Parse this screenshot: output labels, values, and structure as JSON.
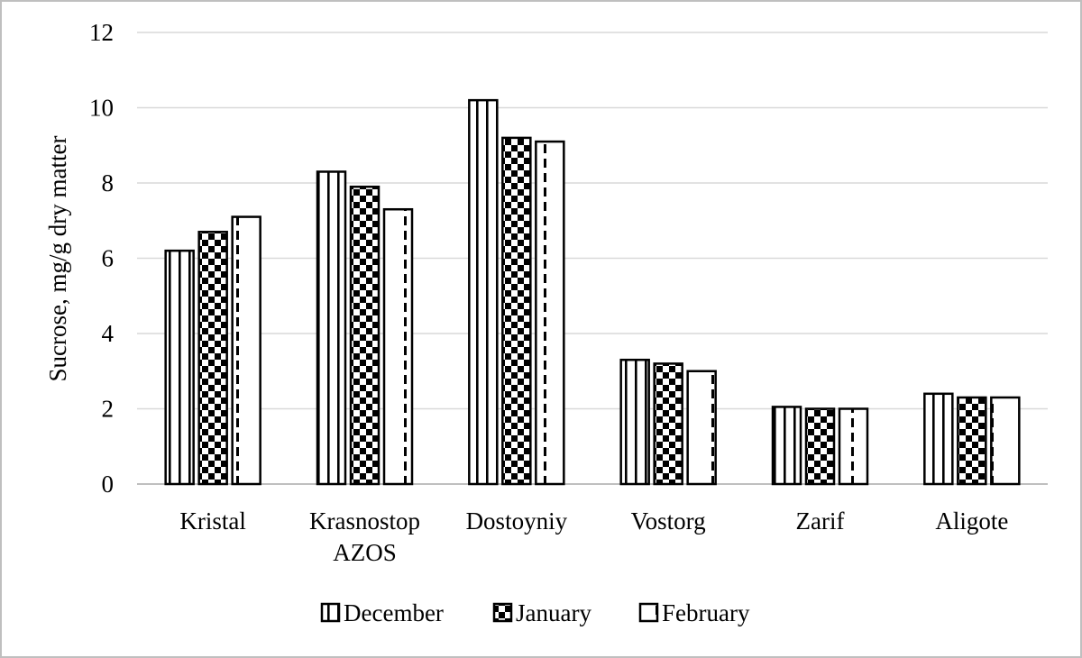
{
  "chart_data": {
    "type": "bar",
    "title": "",
    "xlabel": "",
    "ylabel": "Sucrose, mg/g dry matter",
    "ylim": [
      0,
      12
    ],
    "yticks": [
      0,
      2,
      4,
      6,
      8,
      10,
      12
    ],
    "grid": true,
    "legend": "bottom",
    "categories": [
      [
        "Kristal"
      ],
      [
        "Krasnostop",
        "AZOS"
      ],
      [
        "Dostoyniy"
      ],
      [
        "Vostorg"
      ],
      [
        "Zarif"
      ],
      [
        "Aligote"
      ]
    ],
    "series": [
      {
        "name": "December",
        "pattern": "vertical-lines",
        "values": [
          6.2,
          8.3,
          10.2,
          3.3,
          2.05,
          2.4
        ]
      },
      {
        "name": "January",
        "pattern": "checkerboard",
        "values": [
          6.7,
          7.9,
          9.2,
          3.2,
          2.0,
          2.3
        ]
      },
      {
        "name": "February",
        "pattern": "dashed-vertical",
        "values": [
          7.1,
          7.3,
          9.1,
          3.0,
          2.0,
          2.3
        ]
      }
    ],
    "colors": {
      "bar_fill": "#ffffff",
      "ink": "#000000",
      "grid": "#d9d9d9",
      "axis": "#bfbfbf"
    }
  }
}
